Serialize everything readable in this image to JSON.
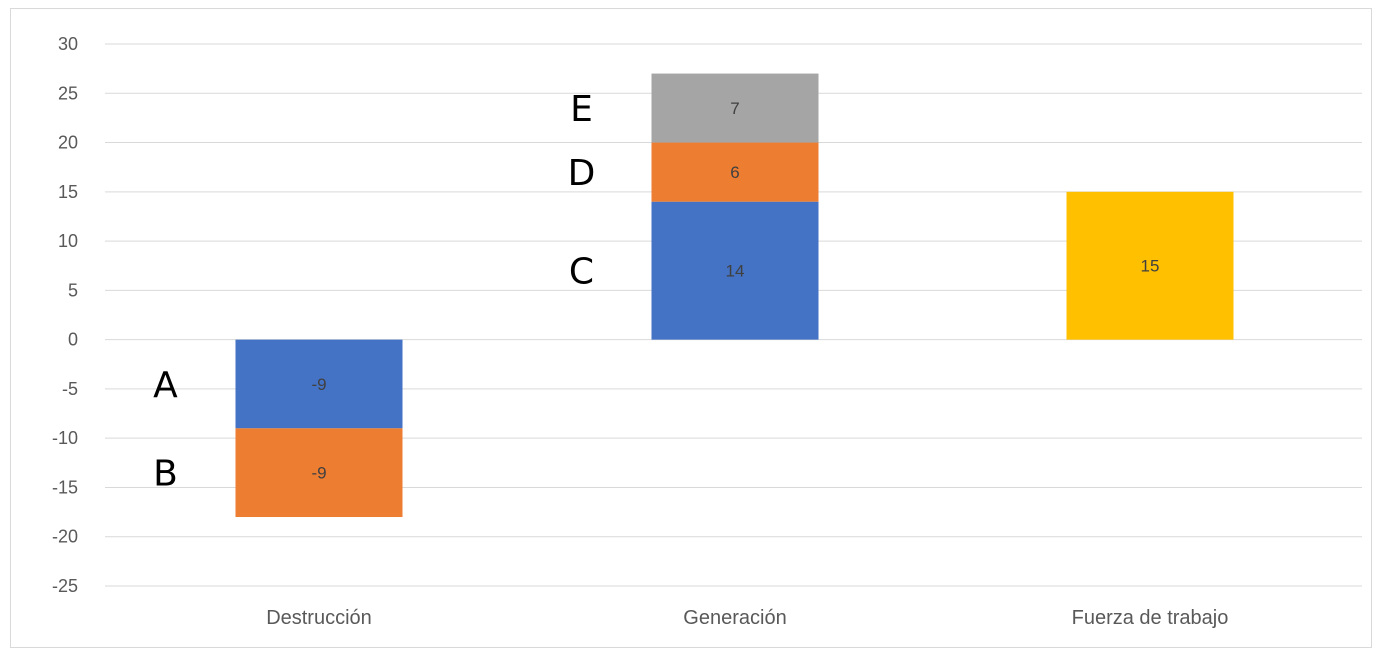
{
  "chart_data": {
    "type": "bar",
    "stacked": true,
    "categories": [
      "Destrucción",
      "Generación",
      "Fuerza de trabajo"
    ],
    "ylim": [
      -25,
      30
    ],
    "yticks": [
      30,
      25,
      20,
      15,
      10,
      5,
      0,
      -5,
      -10,
      -15,
      -20,
      -25
    ],
    "grid": true,
    "segments": [
      {
        "category": "Destrucción",
        "marker": "A",
        "value": -9,
        "label": "-9",
        "color": "#4472c4"
      },
      {
        "category": "Destrucción",
        "marker": "B",
        "value": -9,
        "label": "-9",
        "color": "#ed7d31"
      },
      {
        "category": "Generación",
        "marker": "C",
        "value": 14,
        "label": "14",
        "color": "#4472c4"
      },
      {
        "category": "Generación",
        "marker": "D",
        "value": 6,
        "label": "6",
        "color": "#ed7d31"
      },
      {
        "category": "Generación",
        "marker": "E",
        "value": 7,
        "label": "7",
        "color": "#a5a5a5"
      },
      {
        "category": "Fuerza de trabajo",
        "marker": "",
        "value": 15,
        "label": "15",
        "color": "#ffc000"
      }
    ]
  }
}
